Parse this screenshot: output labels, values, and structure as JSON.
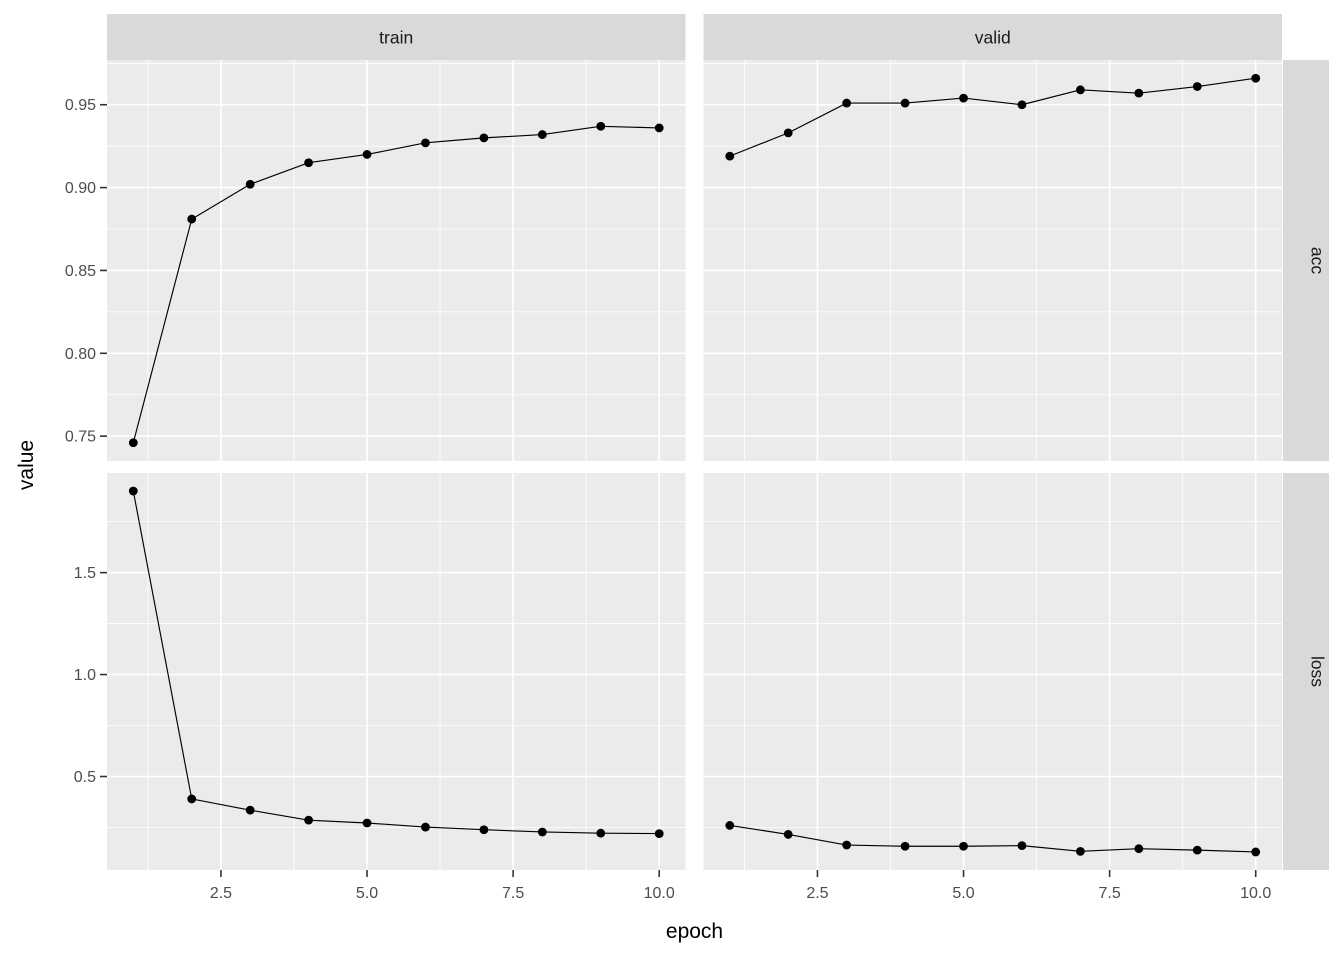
{
  "chart_data": {
    "type": "line",
    "title": "",
    "xlabel": "epoch",
    "ylabel": "value",
    "facet_cols": [
      "train",
      "valid"
    ],
    "facet_rows": [
      "acc",
      "loss"
    ],
    "x": [
      1,
      2,
      3,
      4,
      5,
      6,
      7,
      8,
      9,
      10
    ],
    "series": [
      {
        "name": "train acc",
        "facet_col": "train",
        "facet_row": "acc",
        "values": [
          0.746,
          0.881,
          0.902,
          0.915,
          0.92,
          0.927,
          0.93,
          0.932,
          0.937,
          0.936
        ]
      },
      {
        "name": "valid acc",
        "facet_col": "valid",
        "facet_row": "acc",
        "values": [
          0.919,
          0.933,
          0.951,
          0.951,
          0.954,
          0.95,
          0.959,
          0.957,
          0.961,
          0.966
        ]
      },
      {
        "name": "train loss",
        "facet_col": "train",
        "facet_row": "loss",
        "values": [
          1.9,
          0.39,
          0.335,
          0.286,
          0.272,
          0.252,
          0.239,
          0.228,
          0.222,
          0.22
        ]
      },
      {
        "name": "valid loss",
        "facet_col": "valid",
        "facet_row": "loss",
        "values": [
          0.26,
          0.216,
          0.164,
          0.158,
          0.158,
          0.161,
          0.133,
          0.146,
          0.139,
          0.13
        ]
      }
    ],
    "x_ticks": {
      "breaks": [
        2.5,
        5.0,
        7.5,
        10.0
      ],
      "labels": [
        "2.5",
        "5.0",
        "7.5",
        "10.0"
      ]
    },
    "y_ticks": {
      "acc": {
        "breaks": [
          0.95,
          0.9,
          0.85,
          0.8,
          0.75
        ],
        "labels": [
          "0.95",
          "0.90",
          "0.85",
          "0.80",
          "0.75"
        ]
      },
      "loss": {
        "breaks": [
          1.5,
          1.0,
          0.5
        ],
        "labels": [
          "1.5",
          "1.0",
          "0.5"
        ]
      }
    },
    "xlim_expand_frac": 0.05,
    "ylim_expand_frac": 0.05,
    "grid": true,
    "legend_position": "none"
  },
  "colors": {
    "figure_bg": "#ffffff",
    "panel_bg": "#ebebeb",
    "strip_bg": "#d9d9d9",
    "grid_major": "#ffffff",
    "grid_minor": "#ffffff",
    "line": "#000000",
    "point": "#000000",
    "tick_mark": "#333333",
    "tick_text": "#4d4d4d",
    "axis_title_text": "#000000",
    "strip_text": "#1a1a1a"
  }
}
